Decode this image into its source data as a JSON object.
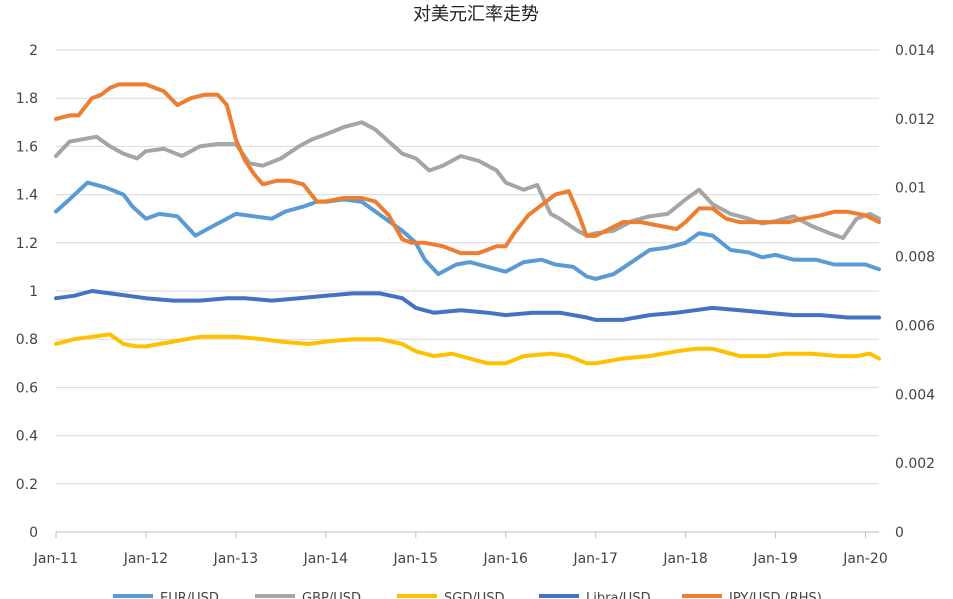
{
  "chart_data": {
    "type": "line",
    "title": "对美元汇率走势",
    "x_ticks": [
      "Jan-11",
      "Jan-12",
      "Jan-13",
      "Jan-14",
      "Jan-15",
      "Jan-16",
      "Jan-17",
      "Jan-18",
      "Jan-19",
      "Jan-20"
    ],
    "x_range": [
      2011.0,
      2020.15
    ],
    "y_left": {
      "range": [
        0,
        2
      ],
      "ticks": [
        "0",
        "0.2",
        "0.4",
        "0.6",
        "0.8",
        "1",
        "1.2",
        "1.4",
        "1.6",
        "1.8",
        "2"
      ]
    },
    "y_right": {
      "range": [
        0,
        0.014
      ],
      "ticks": [
        "0",
        "0.002",
        "0.004",
        "0.006",
        "0.008",
        "0.01",
        "0.012",
        "0.014"
      ]
    },
    "grid": true,
    "legend_position": "bottom",
    "series": [
      {
        "name": "EUR/USD",
        "axis": "left",
        "color": "#5B9BD5",
        "x": [
          2011.0,
          2011.15,
          2011.35,
          2011.55,
          2011.75,
          2011.85,
          2012.0,
          2012.15,
          2012.35,
          2012.55,
          2012.7,
          2012.85,
          2013.0,
          2013.2,
          2013.4,
          2013.55,
          2013.75,
          2013.9,
          2014.0,
          2014.2,
          2014.4,
          2014.55,
          2014.7,
          2014.85,
          2015.0,
          2015.1,
          2015.25,
          2015.45,
          2015.6,
          2015.8,
          2016.0,
          2016.2,
          2016.4,
          2016.55,
          2016.75,
          2016.9,
          2017.0,
          2017.2,
          2017.4,
          2017.6,
          2017.8,
          2018.0,
          2018.15,
          2018.3,
          2018.5,
          2018.7,
          2018.85,
          2019.0,
          2019.2,
          2019.45,
          2019.65,
          2019.85,
          2020.0,
          2020.15
        ],
        "y": [
          1.33,
          1.38,
          1.45,
          1.43,
          1.4,
          1.35,
          1.3,
          1.32,
          1.31,
          1.23,
          1.26,
          1.29,
          1.32,
          1.31,
          1.3,
          1.33,
          1.35,
          1.37,
          1.37,
          1.38,
          1.37,
          1.33,
          1.29,
          1.25,
          1.2,
          1.13,
          1.07,
          1.11,
          1.12,
          1.1,
          1.08,
          1.12,
          1.13,
          1.11,
          1.1,
          1.06,
          1.05,
          1.07,
          1.12,
          1.17,
          1.18,
          1.2,
          1.24,
          1.23,
          1.17,
          1.16,
          1.14,
          1.15,
          1.13,
          1.13,
          1.11,
          1.11,
          1.11,
          1.09
        ]
      },
      {
        "name": "GBP/USD",
        "axis": "left",
        "color": "#A5A5A5",
        "x": [
          2011.0,
          2011.15,
          2011.3,
          2011.45,
          2011.6,
          2011.75,
          2011.9,
          2012.0,
          2012.2,
          2012.4,
          2012.6,
          2012.8,
          2013.0,
          2013.15,
          2013.3,
          2013.5,
          2013.7,
          2013.85,
          2014.0,
          2014.2,
          2014.4,
          2014.55,
          2014.7,
          2014.85,
          2015.0,
          2015.15,
          2015.3,
          2015.5,
          2015.7,
          2015.9,
          2016.0,
          2016.2,
          2016.35,
          2016.5,
          2016.6,
          2016.8,
          2016.9,
          2017.0,
          2017.2,
          2017.4,
          2017.6,
          2017.8,
          2018.0,
          2018.15,
          2018.3,
          2018.5,
          2018.7,
          2018.85,
          2019.0,
          2019.2,
          2019.4,
          2019.6,
          2019.75,
          2019.9,
          2020.05,
          2020.15
        ],
        "y": [
          1.56,
          1.62,
          1.63,
          1.64,
          1.6,
          1.57,
          1.55,
          1.58,
          1.59,
          1.56,
          1.6,
          1.61,
          1.61,
          1.53,
          1.52,
          1.55,
          1.6,
          1.63,
          1.65,
          1.68,
          1.7,
          1.67,
          1.62,
          1.57,
          1.55,
          1.5,
          1.52,
          1.56,
          1.54,
          1.5,
          1.45,
          1.42,
          1.44,
          1.32,
          1.3,
          1.25,
          1.23,
          1.24,
          1.25,
          1.29,
          1.31,
          1.32,
          1.38,
          1.42,
          1.36,
          1.32,
          1.3,
          1.28,
          1.29,
          1.31,
          1.27,
          1.24,
          1.22,
          1.3,
          1.32,
          1.3
        ]
      },
      {
        "name": "SGD/USD",
        "axis": "left",
        "color": "#FFC000",
        "x": [
          2011.0,
          2011.2,
          2011.4,
          2011.6,
          2011.75,
          2011.9,
          2012.0,
          2012.3,
          2012.6,
          2012.85,
          2013.0,
          2013.3,
          2013.5,
          2013.8,
          2014.0,
          2014.3,
          2014.6,
          2014.85,
          2015.0,
          2015.2,
          2015.4,
          2015.6,
          2015.8,
          2016.0,
          2016.2,
          2016.5,
          2016.7,
          2016.9,
          2017.0,
          2017.3,
          2017.6,
          2017.9,
          2018.1,
          2018.3,
          2018.6,
          2018.9,
          2019.1,
          2019.4,
          2019.7,
          2019.9,
          2020.05,
          2020.15
        ],
        "y": [
          0.78,
          0.8,
          0.81,
          0.82,
          0.78,
          0.77,
          0.77,
          0.79,
          0.81,
          0.81,
          0.81,
          0.8,
          0.79,
          0.78,
          0.79,
          0.8,
          0.8,
          0.78,
          0.75,
          0.73,
          0.74,
          0.72,
          0.7,
          0.7,
          0.73,
          0.74,
          0.73,
          0.7,
          0.7,
          0.72,
          0.73,
          0.75,
          0.76,
          0.76,
          0.73,
          0.73,
          0.74,
          0.74,
          0.73,
          0.73,
          0.74,
          0.72
        ]
      },
      {
        "name": "Libra/USD",
        "axis": "left",
        "color": "#4472C4",
        "x": [
          2011.0,
          2011.2,
          2011.4,
          2011.6,
          2011.8,
          2012.0,
          2012.3,
          2012.6,
          2012.9,
          2013.1,
          2013.4,
          2013.7,
          2014.0,
          2014.3,
          2014.6,
          2014.85,
          2015.0,
          2015.2,
          2015.5,
          2015.8,
          2016.0,
          2016.3,
          2016.6,
          2016.9,
          2017.0,
          2017.3,
          2017.6,
          2017.9,
          2018.1,
          2018.3,
          2018.6,
          2018.9,
          2019.2,
          2019.5,
          2019.8,
          2020.0,
          2020.15
        ],
        "y": [
          0.97,
          0.98,
          1.0,
          0.99,
          0.98,
          0.97,
          0.96,
          0.96,
          0.97,
          0.97,
          0.96,
          0.97,
          0.98,
          0.99,
          0.99,
          0.97,
          0.93,
          0.91,
          0.92,
          0.91,
          0.9,
          0.91,
          0.91,
          0.89,
          0.88,
          0.88,
          0.9,
          0.91,
          0.92,
          0.93,
          0.92,
          0.91,
          0.9,
          0.9,
          0.89,
          0.89,
          0.89
        ]
      },
      {
        "name": "JPY/USD (RHS)",
        "axis": "right",
        "color": "#ED7D31",
        "x": [
          2011.0,
          2011.15,
          2011.25,
          2011.4,
          2011.5,
          2011.6,
          2011.7,
          2011.8,
          2012.0,
          2012.1,
          2012.2,
          2012.35,
          2012.5,
          2012.65,
          2012.8,
          2012.9,
          2013.0,
          2013.1,
          2013.2,
          2013.3,
          2013.45,
          2013.6,
          2013.75,
          2013.9,
          2014.0,
          2014.2,
          2014.4,
          2014.55,
          2014.7,
          2014.85,
          2014.95,
          2015.1,
          2015.3,
          2015.5,
          2015.7,
          2015.9,
          2016.0,
          2016.1,
          2016.25,
          2016.4,
          2016.55,
          2016.7,
          2016.8,
          2016.9,
          2017.0,
          2017.15,
          2017.3,
          2017.5,
          2017.7,
          2017.9,
          2018.0,
          2018.15,
          2018.3,
          2018.45,
          2018.6,
          2018.75,
          2018.9,
          2019.0,
          2019.15,
          2019.3,
          2019.5,
          2019.65,
          2019.8,
          2020.0,
          2020.15
        ],
        "y": [
          0.012,
          0.0121,
          0.0121,
          0.0126,
          0.0127,
          0.0129,
          0.013,
          0.013,
          0.013,
          0.0129,
          0.0128,
          0.0124,
          0.0126,
          0.0127,
          0.0127,
          0.0124,
          0.0114,
          0.0108,
          0.0104,
          0.0101,
          0.0102,
          0.0102,
          0.0101,
          0.0096,
          0.0096,
          0.0097,
          0.0097,
          0.0096,
          0.0092,
          0.0085,
          0.0084,
          0.0084,
          0.0083,
          0.0081,
          0.0081,
          0.0083,
          0.0083,
          0.0087,
          0.0092,
          0.0095,
          0.0098,
          0.0099,
          0.0093,
          0.0086,
          0.0086,
          0.0088,
          0.009,
          0.009,
          0.0089,
          0.0088,
          0.009,
          0.0094,
          0.0094,
          0.0091,
          0.009,
          0.009,
          0.009,
          0.009,
          0.009,
          0.0091,
          0.0092,
          0.0093,
          0.0093,
          0.0092,
          0.009
        ]
      }
    ]
  }
}
